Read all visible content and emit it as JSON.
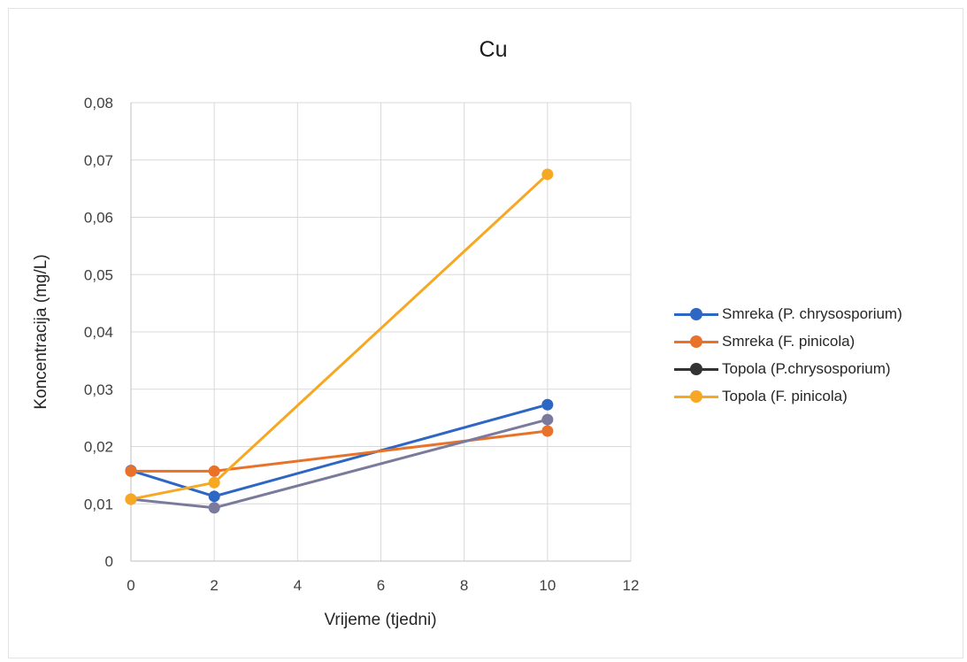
{
  "chart_data": {
    "type": "line",
    "title": "Cu",
    "xlabel": "Vrijeme (tjedni)",
    "ylabel": "Koncentracija (mg/L)",
    "xlim": [
      0,
      12
    ],
    "ylim": [
      0,
      0.08
    ],
    "x_ticks": [
      0,
      2,
      4,
      6,
      8,
      10,
      12
    ],
    "x_tick_labels": [
      "0",
      "2",
      "4",
      "6",
      "8",
      "10",
      "12"
    ],
    "y_ticks": [
      0,
      0.01,
      0.02,
      0.03,
      0.04,
      0.05,
      0.06,
      0.07,
      0.08
    ],
    "y_tick_labels": [
      "0",
      "0,01",
      "0,02",
      "0,03",
      "0,04",
      "0,05",
      "0,06",
      "0,07",
      "0,08"
    ],
    "grid": true,
    "legend_position": "right",
    "x": [
      0,
      2,
      10
    ],
    "series": [
      {
        "name": "Smreka (P. chrysosporium)",
        "color": "#2e66c4",
        "values": [
          0.0158,
          0.0113,
          0.0273
        ]
      },
      {
        "name": "Smreka (F. pinicola)",
        "color": "#e8722a",
        "values": [
          0.0157,
          0.0157,
          0.0227
        ]
      },
      {
        "name": "Topola (P.chrysosporium)",
        "color": "#7a7a9c",
        "legend_color": "#333333",
        "values": [
          0.0108,
          0.0093,
          0.0247
        ]
      },
      {
        "name": "Topola (F. pinicola)",
        "color": "#f7a823",
        "values": [
          0.0108,
          0.0137,
          0.0675
        ]
      }
    ]
  }
}
